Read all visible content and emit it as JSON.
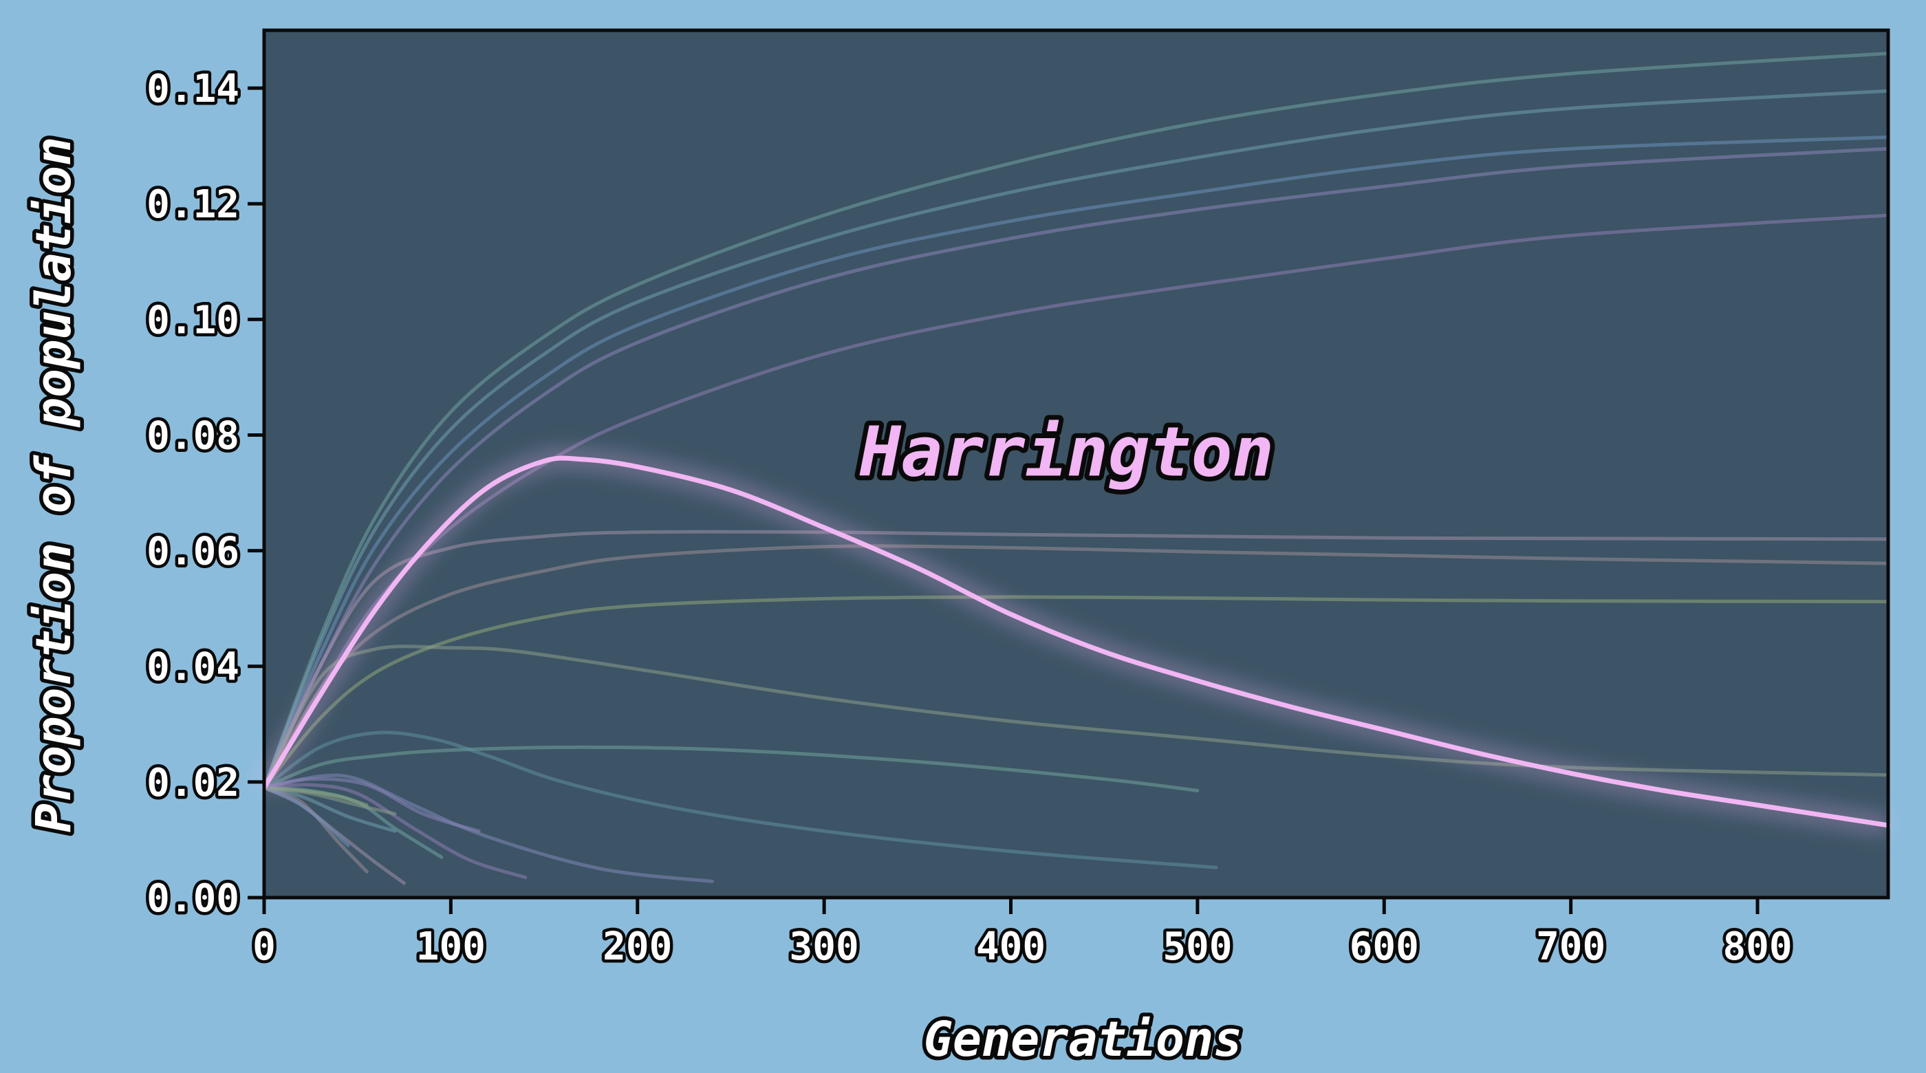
{
  "chart_data": {
    "type": "line",
    "xlabel": "Generations",
    "ylabel": "Proportion of population",
    "xlim": [
      0,
      870
    ],
    "ylim": [
      0,
      0.15
    ],
    "xticks": [
      "0",
      "100",
      "200",
      "300",
      "400",
      "500",
      "600",
      "700",
      "800"
    ],
    "yticks": [
      "0.00",
      "0.02",
      "0.04",
      "0.06",
      "0.08",
      "0.10",
      "0.12",
      "0.14"
    ],
    "grid": false,
    "annotation": {
      "text": "Harrington",
      "x": 430,
      "y": 0.073
    },
    "colors": {
      "background": "#8bbcdc",
      "plot_background": "#3c5465",
      "highlight": "#f1b6f3"
    },
    "highlight_series": {
      "name": "Harrington",
      "color": "#f1b6f3",
      "points": [
        [
          0,
          0.019
        ],
        [
          30,
          0.035
        ],
        [
          60,
          0.05
        ],
        [
          90,
          0.062
        ],
        [
          120,
          0.071
        ],
        [
          150,
          0.0755
        ],
        [
          170,
          0.0758
        ],
        [
          200,
          0.0745
        ],
        [
          250,
          0.0705
        ],
        [
          300,
          0.064
        ],
        [
          350,
          0.057
        ],
        [
          400,
          0.049
        ],
        [
          450,
          0.0425
        ],
        [
          500,
          0.0375
        ],
        [
          550,
          0.033
        ],
        [
          600,
          0.029
        ],
        [
          650,
          0.025
        ],
        [
          700,
          0.0215
        ],
        [
          750,
          0.0185
        ],
        [
          800,
          0.016
        ],
        [
          870,
          0.0125
        ]
      ]
    },
    "background_series": [
      {
        "color": "#6fa3a3",
        "points": [
          [
            0,
            0.019
          ],
          [
            30,
            0.045
          ],
          [
            60,
            0.066
          ],
          [
            100,
            0.084
          ],
          [
            150,
            0.097
          ],
          [
            200,
            0.106
          ],
          [
            300,
            0.118
          ],
          [
            400,
            0.127
          ],
          [
            500,
            0.134
          ],
          [
            600,
            0.139
          ],
          [
            700,
            0.1425
          ],
          [
            870,
            0.146
          ]
        ]
      },
      {
        "color": "#6f9fae",
        "points": [
          [
            0,
            0.019
          ],
          [
            30,
            0.044
          ],
          [
            60,
            0.064
          ],
          [
            100,
            0.081
          ],
          [
            150,
            0.094
          ],
          [
            200,
            0.103
          ],
          [
            300,
            0.114
          ],
          [
            400,
            0.122
          ],
          [
            500,
            0.128
          ],
          [
            600,
            0.133
          ],
          [
            700,
            0.1365
          ],
          [
            870,
            0.1395
          ]
        ]
      },
      {
        "color": "#6b8fbb",
        "points": [
          [
            0,
            0.019
          ],
          [
            30,
            0.042
          ],
          [
            60,
            0.061
          ],
          [
            100,
            0.077
          ],
          [
            150,
            0.09
          ],
          [
            200,
            0.099
          ],
          [
            300,
            0.11
          ],
          [
            400,
            0.117
          ],
          [
            500,
            0.122
          ],
          [
            600,
            0.1265
          ],
          [
            700,
            0.1295
          ],
          [
            870,
            0.1315
          ]
        ]
      },
      {
        "color": "#8a84b8",
        "points": [
          [
            0,
            0.019
          ],
          [
            30,
            0.04
          ],
          [
            60,
            0.058
          ],
          [
            100,
            0.074
          ],
          [
            150,
            0.087
          ],
          [
            200,
            0.096
          ],
          [
            300,
            0.107
          ],
          [
            400,
            0.114
          ],
          [
            500,
            0.119
          ],
          [
            600,
            0.123
          ],
          [
            700,
            0.1265
          ],
          [
            870,
            0.1295
          ]
        ]
      },
      {
        "color": "#8e7cb2",
        "points": [
          [
            0,
            0.019
          ],
          [
            30,
            0.036
          ],
          [
            60,
            0.051
          ],
          [
            100,
            0.064
          ],
          [
            150,
            0.075
          ],
          [
            200,
            0.083
          ],
          [
            300,
            0.094
          ],
          [
            400,
            0.101
          ],
          [
            500,
            0.106
          ],
          [
            600,
            0.1105
          ],
          [
            700,
            0.1145
          ],
          [
            870,
            0.118
          ]
        ]
      },
      {
        "color": "#a08ea8",
        "points": [
          [
            0,
            0.019
          ],
          [
            30,
            0.04
          ],
          [
            60,
            0.055
          ],
          [
            100,
            0.0605
          ],
          [
            150,
            0.0625
          ],
          [
            200,
            0.0632
          ],
          [
            300,
            0.0632
          ],
          [
            400,
            0.0628
          ],
          [
            500,
            0.0625
          ],
          [
            600,
            0.0622
          ],
          [
            700,
            0.0621
          ],
          [
            870,
            0.062
          ]
        ]
      },
      {
        "color": "#9a8a96",
        "points": [
          [
            0,
            0.019
          ],
          [
            30,
            0.036
          ],
          [
            60,
            0.046
          ],
          [
            100,
            0.0525
          ],
          [
            150,
            0.0565
          ],
          [
            200,
            0.059
          ],
          [
            300,
            0.0607
          ],
          [
            400,
            0.0605
          ],
          [
            500,
            0.0598
          ],
          [
            600,
            0.0592
          ],
          [
            700,
            0.0586
          ],
          [
            870,
            0.0578
          ]
        ]
      },
      {
        "color": "#8fa67a",
        "points": [
          [
            0,
            0.019
          ],
          [
            30,
            0.031
          ],
          [
            60,
            0.039
          ],
          [
            100,
            0.0445
          ],
          [
            150,
            0.0485
          ],
          [
            200,
            0.0505
          ],
          [
            300,
            0.0517
          ],
          [
            400,
            0.052
          ],
          [
            500,
            0.0518
          ],
          [
            600,
            0.0515
          ],
          [
            700,
            0.0513
          ],
          [
            870,
            0.0512
          ]
        ]
      },
      {
        "color": "#8a9d8a",
        "points": [
          [
            0,
            0.019
          ],
          [
            30,
            0.038
          ],
          [
            60,
            0.043
          ],
          [
            100,
            0.0432
          ],
          [
            130,
            0.0428
          ],
          [
            170,
            0.041
          ],
          [
            220,
            0.0385
          ],
          [
            300,
            0.0345
          ],
          [
            400,
            0.0305
          ],
          [
            500,
            0.0275
          ],
          [
            600,
            0.0245
          ],
          [
            700,
            0.0225
          ],
          [
            870,
            0.0212
          ]
        ]
      },
      {
        "color": "#6fa39a",
        "points": [
          [
            0,
            0.019
          ],
          [
            30,
            0.023
          ],
          [
            60,
            0.0245
          ],
          [
            100,
            0.0255
          ],
          [
            170,
            0.026
          ],
          [
            250,
            0.0255
          ],
          [
            350,
            0.0235
          ],
          [
            450,
            0.0205
          ],
          [
            500,
            0.0185
          ]
        ]
      },
      {
        "color": "#5f8fa0",
        "points": [
          [
            0,
            0.019
          ],
          [
            30,
            0.026
          ],
          [
            60,
            0.0285
          ],
          [
            90,
            0.0275
          ],
          [
            120,
            0.0245
          ],
          [
            160,
            0.02
          ],
          [
            220,
            0.0155
          ],
          [
            300,
            0.0115
          ],
          [
            400,
            0.008
          ],
          [
            510,
            0.0052
          ]
        ]
      },
      {
        "color": "#7f86b8",
        "points": [
          [
            0,
            0.019
          ],
          [
            30,
            0.021
          ],
          [
            50,
            0.0205
          ],
          [
            80,
            0.016
          ],
          [
            120,
            0.0105
          ],
          [
            180,
            0.005
          ],
          [
            240,
            0.0028
          ]
        ]
      },
      {
        "color": "#8e7cb2",
        "points": [
          [
            0,
            0.019
          ],
          [
            25,
            0.0195
          ],
          [
            50,
            0.018
          ],
          [
            80,
            0.012
          ],
          [
            110,
            0.0065
          ],
          [
            140,
            0.0035
          ]
        ]
      },
      {
        "color": "#a08ea8",
        "points": [
          [
            0,
            0.019
          ],
          [
            20,
            0.016
          ],
          [
            40,
            0.011
          ],
          [
            60,
            0.006
          ],
          [
            75,
            0.0025
          ]
        ]
      },
      {
        "color": "#6fa3a3",
        "points": [
          [
            0,
            0.019
          ],
          [
            25,
            0.0185
          ],
          [
            50,
            0.0165
          ],
          [
            70,
            0.012
          ],
          [
            95,
            0.007
          ]
        ]
      },
      {
        "color": "#6f9fae",
        "points": [
          [
            0,
            0.019
          ],
          [
            20,
            0.0175
          ],
          [
            45,
            0.014
          ],
          [
            70,
            0.0115
          ]
        ]
      },
      {
        "color": "#8fa67a",
        "points": [
          [
            0,
            0.019
          ],
          [
            20,
            0.0185
          ],
          [
            40,
            0.0175
          ],
          [
            55,
            0.016
          ]
        ]
      },
      {
        "color": "#9a8a96",
        "points": [
          [
            0,
            0.019
          ],
          [
            20,
            0.0165
          ],
          [
            40,
            0.0095
          ],
          [
            55,
            0.0045
          ]
        ]
      },
      {
        "color": "#8a84b8",
        "points": [
          [
            0,
            0.019
          ],
          [
            25,
            0.0205
          ],
          [
            55,
            0.0195
          ],
          [
            85,
            0.0145
          ],
          [
            115,
            0.0115
          ]
        ]
      },
      {
        "color": "#6b8fbb",
        "points": [
          [
            0,
            0.019
          ],
          [
            15,
            0.017
          ],
          [
            30,
            0.0135
          ],
          [
            45,
            0.009
          ]
        ]
      },
      {
        "color": "#8a9d8a",
        "points": [
          [
            0,
            0.019
          ],
          [
            25,
            0.018
          ],
          [
            50,
            0.016
          ],
          [
            70,
            0.0145
          ]
        ]
      }
    ]
  }
}
